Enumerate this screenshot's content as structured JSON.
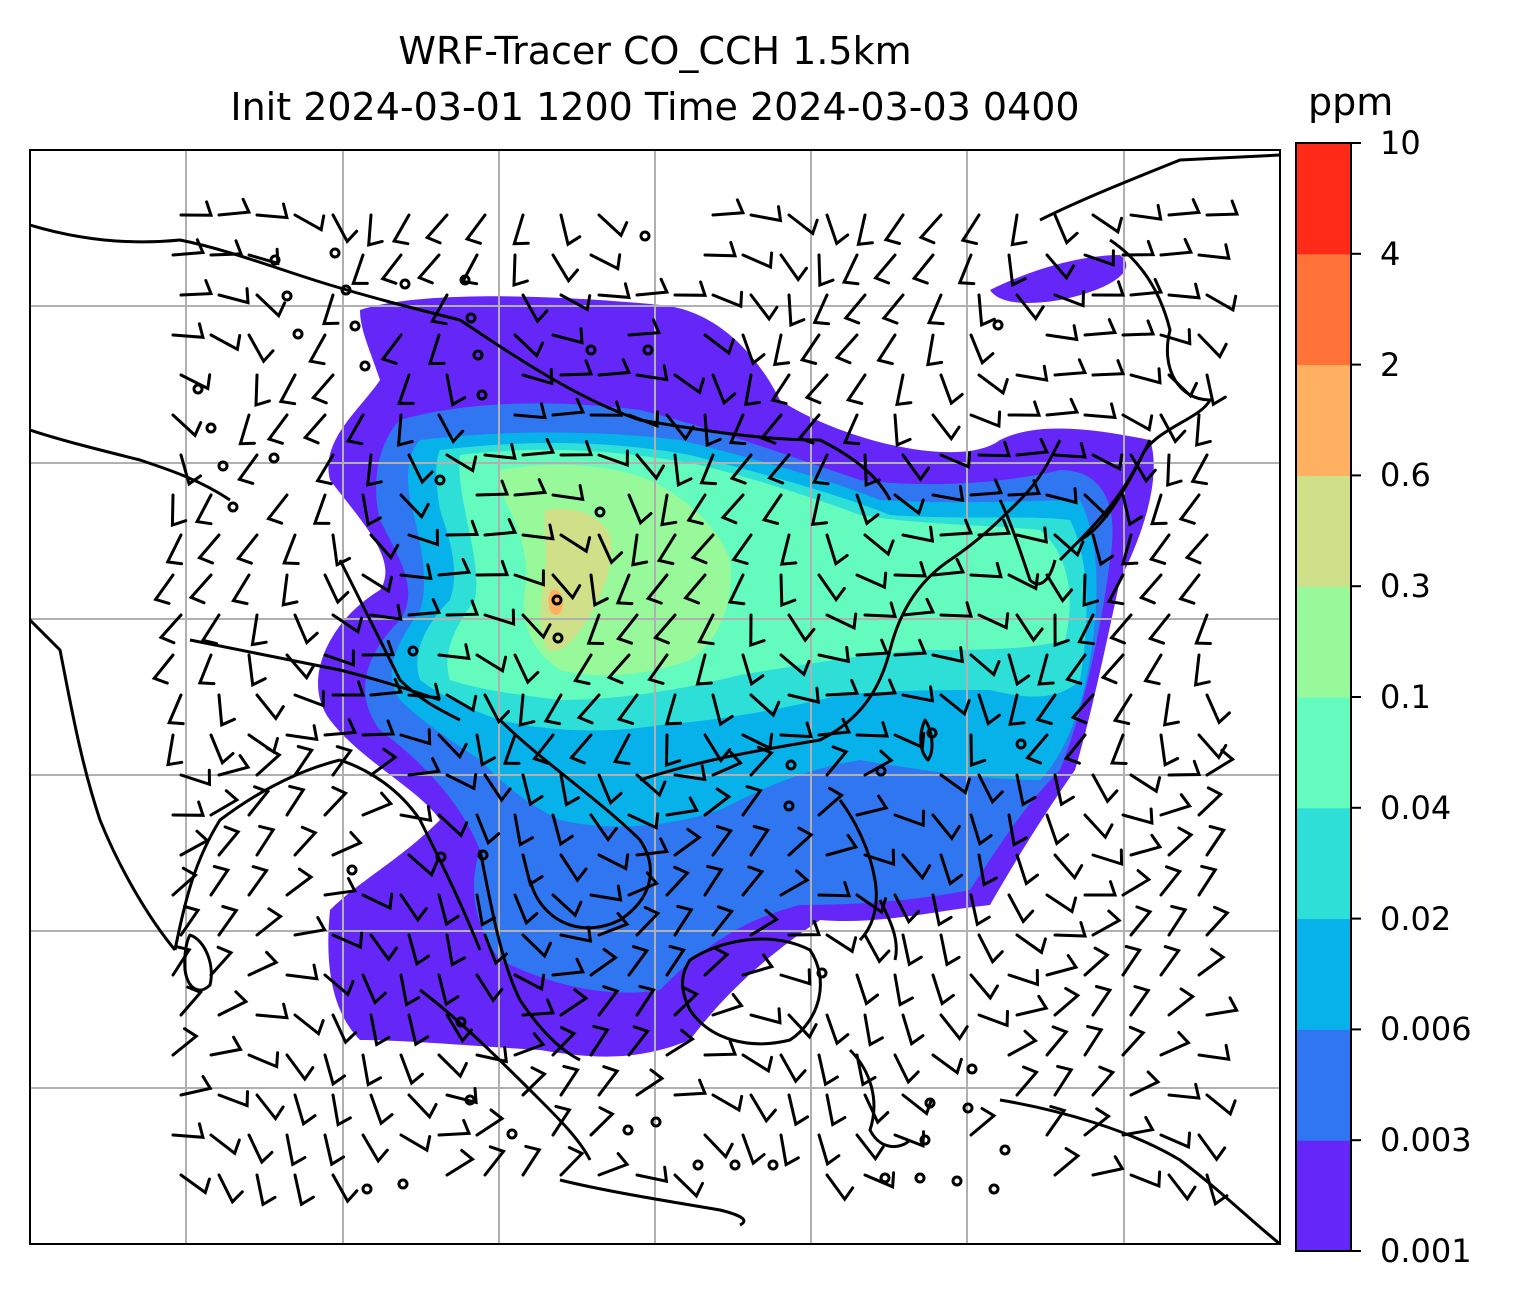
{
  "title": {
    "line1": "WRF-Tracer CO_CCH 1.5km",
    "line2": "Init 2024-03-01 1200 Time 2024-03-03 0400"
  },
  "colorbar": {
    "unit": "ppm",
    "levels": [
      "0.001",
      "0.003",
      "0.006",
      "0.02",
      "0.04",
      "0.1",
      "0.3",
      "0.6",
      "2",
      "4",
      "10"
    ],
    "colors": [
      "#6527f8",
      "#3076f0",
      "#07b1ea",
      "#2edfd8",
      "#64fbbf",
      "#98f99a",
      "#cfe089",
      "#ffb060",
      "#ff7238",
      "#ff2b18"
    ]
  },
  "map": {
    "features": [
      "coastlines",
      "country-borders",
      "gridlines",
      "wind-barbs",
      "tracer-field"
    ],
    "calm_wind_symbol": "circle"
  }
}
